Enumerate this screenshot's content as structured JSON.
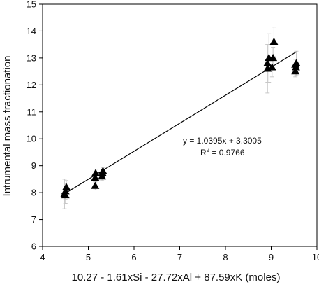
{
  "chart_data": {
    "type": "scatter",
    "xlabel": "10.27 - 1.61xSi - 27.72xAl + 87.59xK (moles)",
    "ylabel": "Intrumental mass fractionation",
    "xlim": [
      4,
      10
    ],
    "ylim": [
      6,
      15
    ],
    "xticks": [
      4,
      5,
      6,
      7,
      8,
      9,
      10
    ],
    "yticks": [
      6,
      7,
      8,
      9,
      10,
      11,
      12,
      13,
      14,
      15
    ],
    "grid": false,
    "marker": "triangle",
    "marker_color": "#000000",
    "errorbar_color": "#c8c8c8",
    "line_color": "#000000",
    "points": [
      {
        "x": 4.48,
        "y": 7.95,
        "err": 0.55
      },
      {
        "x": 4.5,
        "y": 8.05,
        "err": 0.3
      },
      {
        "x": 4.52,
        "y": 8.2,
        "err": 0.25
      },
      {
        "x": 4.5,
        "y": 7.9,
        "err": 0.3
      },
      {
        "x": 5.15,
        "y": 8.25,
        "err": 0.15
      },
      {
        "x": 5.15,
        "y": 8.55,
        "err": 0.15
      },
      {
        "x": 5.16,
        "y": 8.72,
        "err": 0.15
      },
      {
        "x": 5.3,
        "y": 8.6,
        "err": 0.15
      },
      {
        "x": 5.31,
        "y": 8.72,
        "err": 0.15
      },
      {
        "x": 5.32,
        "y": 8.8,
        "err": 0.12
      },
      {
        "x": 8.92,
        "y": 12.6,
        "err": 0.9
      },
      {
        "x": 8.92,
        "y": 12.8,
        "err": 0.7
      },
      {
        "x": 8.95,
        "y": 13.0,
        "err": 0.9
      },
      {
        "x": 9.02,
        "y": 12.65,
        "err": 0.35
      },
      {
        "x": 9.04,
        "y": 13.0,
        "err": 0.4
      },
      {
        "x": 9.06,
        "y": 13.6,
        "err": 0.55
      },
      {
        "x": 9.53,
        "y": 12.5,
        "err": 0.2
      },
      {
        "x": 9.54,
        "y": 12.65,
        "err": 0.2
      },
      {
        "x": 9.53,
        "y": 12.75,
        "err": 0.2
      },
      {
        "x": 9.55,
        "y": 12.8,
        "err": 0.45
      }
    ],
    "trendline": {
      "slope": 1.0395,
      "intercept": 3.3005,
      "x_range": [
        4.5,
        9.55
      ]
    },
    "equation": {
      "line1": "y = 1.0395x + 3.3005",
      "r2_prefix": "R",
      "r2_sup": "2",
      "r2_value": " = 0.9766"
    }
  }
}
